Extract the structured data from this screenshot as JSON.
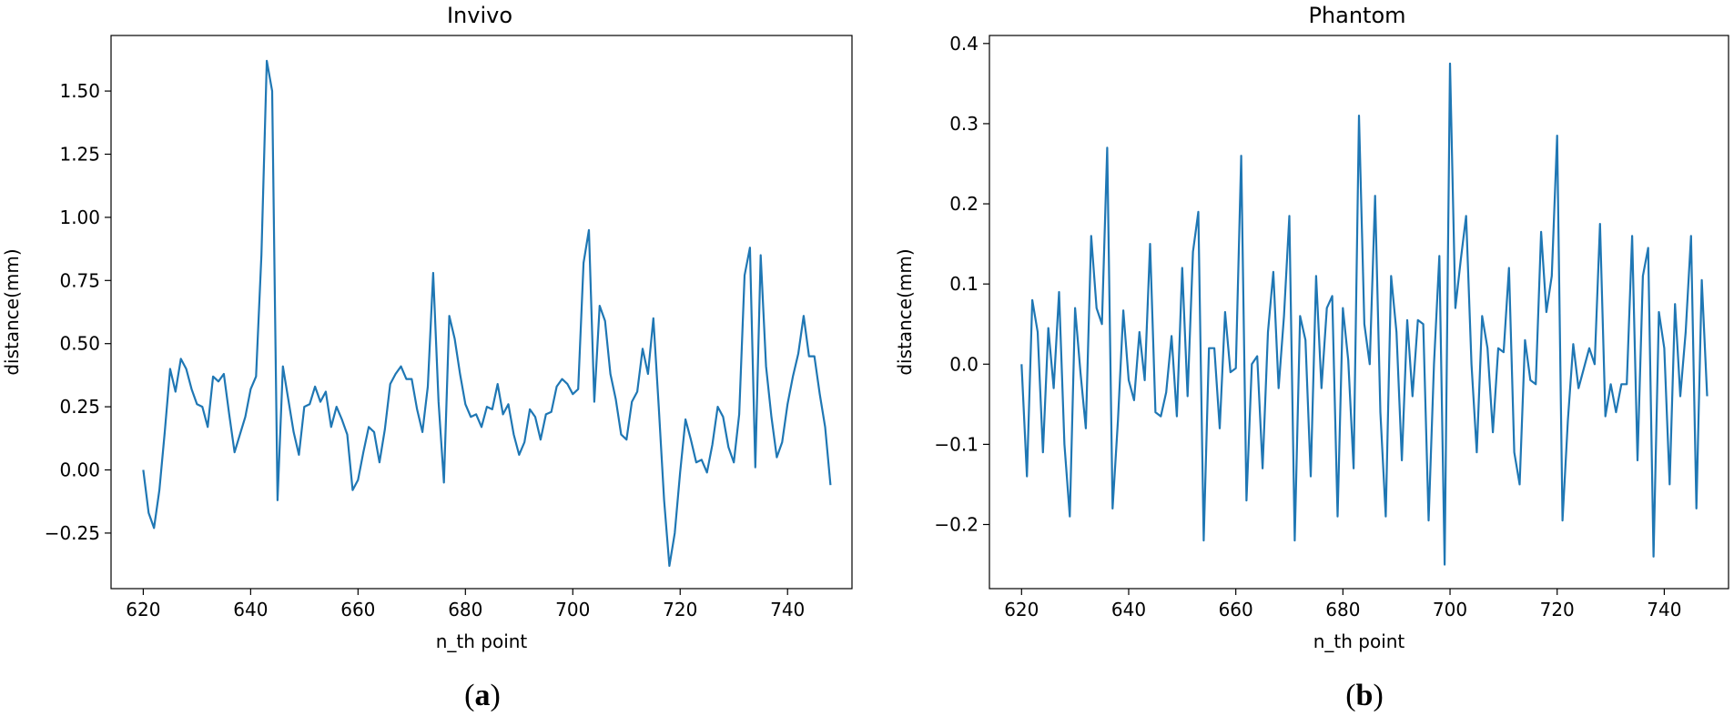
{
  "chart_data": [
    {
      "type": "line",
      "panel_label": "a",
      "title": "Invivo",
      "xlabel": "n_th point",
      "ylabel": "distance(mm)",
      "xlim": [
        614,
        752
      ],
      "ylim": [
        -0.47,
        1.72
      ],
      "xticks": [
        620,
        640,
        660,
        680,
        700,
        720,
        740
      ],
      "yticks": [
        -0.25,
        0.0,
        0.25,
        0.5,
        0.75,
        1.0,
        1.25,
        1.5
      ],
      "ytick_labels": [
        "−0.25",
        "0.00",
        "0.25",
        "0.50",
        "0.75",
        "1.00",
        "1.25",
        "1.50"
      ],
      "color": "#1f77b4",
      "series": [
        {
          "name": "Invivo",
          "x_start": 620,
          "values": [
            0.0,
            -0.17,
            -0.23,
            -0.08,
            0.15,
            0.4,
            0.31,
            0.44,
            0.4,
            0.32,
            0.26,
            0.25,
            0.17,
            0.37,
            0.35,
            0.38,
            0.22,
            0.07,
            0.14,
            0.21,
            0.32,
            0.37,
            0.85,
            1.62,
            1.5,
            -0.12,
            0.41,
            0.28,
            0.15,
            0.06,
            0.25,
            0.26,
            0.33,
            0.27,
            0.31,
            0.17,
            0.25,
            0.2,
            0.14,
            -0.08,
            -0.04,
            0.07,
            0.17,
            0.15,
            0.03,
            0.16,
            0.34,
            0.38,
            0.41,
            0.36,
            0.36,
            0.24,
            0.15,
            0.33,
            0.78,
            0.27,
            -0.05,
            0.61,
            0.52,
            0.38,
            0.26,
            0.21,
            0.22,
            0.17,
            0.25,
            0.24,
            0.34,
            0.22,
            0.26,
            0.14,
            0.06,
            0.11,
            0.24,
            0.21,
            0.12,
            0.22,
            0.23,
            0.33,
            0.36,
            0.34,
            0.3,
            0.32,
            0.82,
            0.95,
            0.27,
            0.65,
            0.59,
            0.38,
            0.28,
            0.14,
            0.12,
            0.27,
            0.31,
            0.48,
            0.38,
            0.6,
            0.25,
            -0.12,
            -0.38,
            -0.25,
            -0.01,
            0.2,
            0.12,
            0.03,
            0.04,
            -0.01,
            0.1,
            0.25,
            0.21,
            0.09,
            0.03,
            0.22,
            0.77,
            0.88,
            0.01,
            0.85,
            0.41,
            0.21,
            0.05,
            0.11,
            0.26,
            0.37,
            0.46,
            0.61,
            0.45,
            0.45,
            0.3,
            0.17,
            -0.06
          ]
        }
      ]
    },
    {
      "type": "line",
      "panel_label": "b",
      "title": "Phantom",
      "xlabel": "n_th point",
      "ylabel": "distance(mm)",
      "xlim": [
        614,
        752
      ],
      "ylim": [
        -0.28,
        0.41
      ],
      "xticks": [
        620,
        640,
        660,
        680,
        700,
        720,
        740
      ],
      "yticks": [
        -0.2,
        -0.1,
        0.0,
        0.1,
        0.2,
        0.3,
        0.4
      ],
      "ytick_labels": [
        "−0.2",
        "−0.1",
        "0.0",
        "0.1",
        "0.2",
        "0.3",
        "0.4"
      ],
      "color": "#1f77b4",
      "series": [
        {
          "name": "Phantom",
          "x_start": 620,
          "values": [
            0.0,
            -0.14,
            0.08,
            0.04,
            -0.11,
            0.045,
            -0.03,
            0.09,
            -0.1,
            -0.19,
            0.07,
            -0.01,
            -0.08,
            0.16,
            0.07,
            0.05,
            0.27,
            -0.18,
            -0.07,
            0.067,
            -0.02,
            -0.045,
            0.04,
            -0.02,
            0.15,
            -0.06,
            -0.065,
            -0.035,
            0.035,
            -0.065,
            0.12,
            -0.04,
            0.14,
            0.19,
            -0.22,
            0.02,
            0.02,
            -0.08,
            0.065,
            -0.01,
            -0.005,
            0.26,
            -0.17,
            0.0,
            0.01,
            -0.13,
            0.04,
            0.115,
            -0.03,
            0.06,
            0.185,
            -0.22,
            0.06,
            0.03,
            -0.14,
            0.11,
            -0.03,
            0.07,
            0.085,
            -0.19,
            0.07,
            0.005,
            -0.13,
            0.31,
            0.05,
            0.0,
            0.21,
            -0.06,
            -0.19,
            0.11,
            0.04,
            -0.12,
            0.055,
            -0.04,
            0.055,
            0.05,
            -0.195,
            0.0,
            0.135,
            -0.25,
            0.375,
            0.07,
            0.13,
            0.185,
            0.0,
            -0.11,
            0.06,
            0.02,
            -0.085,
            0.02,
            0.015,
            0.12,
            -0.11,
            -0.15,
            0.03,
            -0.02,
            -0.025,
            0.165,
            0.065,
            0.11,
            0.285,
            -0.195,
            -0.07,
            0.025,
            -0.03,
            -0.005,
            0.02,
            0.0,
            0.175,
            -0.065,
            -0.025,
            -0.06,
            -0.025,
            -0.025,
            0.16,
            -0.12,
            0.11,
            0.145,
            -0.24,
            0.065,
            0.02,
            -0.15,
            0.075,
            -0.04,
            0.04,
            0.16,
            -0.18,
            0.105,
            -0.04
          ]
        }
      ]
    }
  ]
}
